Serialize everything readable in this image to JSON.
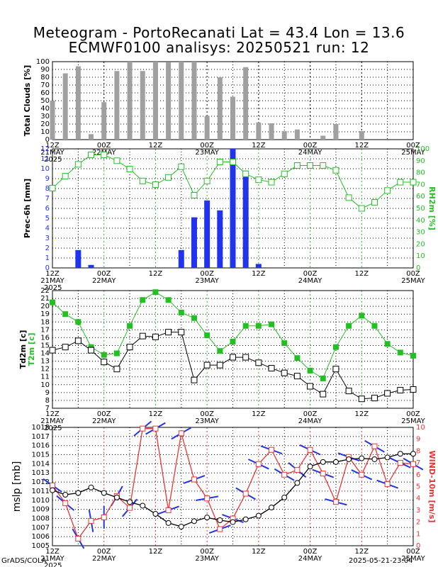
{
  "header": {
    "title_line1": "Meteogram - PortoRecanati Lat = 43.4 Lon = 13.6",
    "title_line2": "ECMWF0100 analisys: 20250521 run: 12"
  },
  "footer": {
    "left": "GrADS/COLA",
    "right": "2025-05-21-23:04"
  },
  "time_axis": {
    "ticks": [
      {
        "label": "12Z",
        "sub": "21MAY"
      },
      {
        "label": "00Z",
        "sub": "22MAY"
      },
      {
        "label": "12Z",
        "sub": ""
      },
      {
        "label": "00Z",
        "sub": "23MAY"
      },
      {
        "label": "12Z",
        "sub": ""
      },
      {
        "label": "00Z",
        "sub": "24MAY"
      },
      {
        "label": "12Z",
        "sub": ""
      },
      {
        "label": "00Z",
        "sub": "25MAY"
      }
    ],
    "year_label": "2025"
  },
  "colors": {
    "gray_bar": "#a0a0a0",
    "blue_bar": "#2233ee",
    "green": "#22c022",
    "red": "#ee3333",
    "blue_wind": "#2233ee"
  },
  "chart_data": [
    {
      "type": "bar",
      "ylabel": "Total Clouds [%]",
      "ylim": [
        0,
        100
      ],
      "yticks": [
        0,
        10,
        20,
        30,
        40,
        50,
        60,
        70,
        80,
        90,
        100
      ],
      "x_hours": [
        0,
        3,
        6,
        9,
        12,
        15,
        18,
        21,
        24,
        27,
        30,
        33,
        36,
        39,
        42,
        45,
        48,
        51,
        54,
        57,
        60,
        63,
        66,
        69,
        72,
        75,
        78,
        81,
        84
      ],
      "values": [
        50,
        85,
        94,
        7,
        48,
        88,
        100,
        88,
        100,
        99,
        100,
        100,
        30,
        80,
        55,
        93,
        22,
        21,
        11,
        13,
        0,
        5,
        20,
        0,
        11,
        0,
        0,
        0,
        0
      ]
    },
    {
      "type": "bar+line",
      "ylabel_left": "Prec-6h [mm]",
      "ylabel_right": "RH2m [%]",
      "ylim_left": [
        0,
        12
      ],
      "ylim_right": [
        0,
        100
      ],
      "yticks_left": [
        0,
        1,
        2,
        3,
        4,
        5,
        6,
        7,
        8,
        9,
        10,
        11,
        12
      ],
      "yticks_right": [
        0,
        10,
        20,
        30,
        40,
        50,
        60,
        70,
        80,
        90,
        100
      ],
      "precip": {
        "x_hours": [
          3,
          6,
          9,
          12,
          15,
          18,
          21,
          24,
          27,
          30,
          33,
          36,
          39,
          42,
          45,
          48,
          51,
          54,
          57,
          60,
          63,
          66,
          69,
          72,
          75,
          78,
          81,
          84
        ],
        "values": [
          0,
          1.8,
          0.3,
          0,
          0,
          0,
          0,
          0,
          0,
          1.8,
          5.1,
          6.8,
          5.8,
          12,
          9.8,
          0.4,
          0,
          0,
          0,
          0,
          0,
          0,
          0,
          0,
          0,
          0,
          0,
          0
        ]
      },
      "rh": {
        "x_hours": [
          0,
          3,
          6,
          9,
          12,
          15,
          18,
          21,
          24,
          27,
          30,
          33,
          36,
          39,
          42,
          45,
          48,
          51,
          54,
          57,
          60,
          63,
          66,
          69,
          72,
          75,
          78,
          81,
          84
        ],
        "values": [
          67,
          77,
          87,
          95,
          95,
          90,
          83,
          73,
          70,
          76,
          85,
          61,
          73,
          89,
          89,
          79,
          74,
          72,
          79,
          86,
          86,
          86,
          82,
          59,
          50,
          55,
          65,
          72,
          72
        ]
      }
    },
    {
      "type": "line",
      "ylabel_left": "Td2m [c]",
      "ylabel_left2": "T2m [c]",
      "ylim": [
        7,
        22
      ],
      "yticks": [
        7,
        8,
        9,
        10,
        11,
        12,
        13,
        14,
        15,
        16,
        17,
        18,
        19,
        20,
        21,
        22
      ],
      "series": [
        {
          "name": "T2m",
          "x_hours": [
            0,
            3,
            6,
            9,
            12,
            15,
            18,
            21,
            24,
            27,
            30,
            33,
            36,
            39,
            42,
            45,
            48,
            51,
            54,
            57,
            60,
            63,
            66,
            69,
            72,
            75,
            78,
            81,
            84
          ],
          "values": [
            20.5,
            19,
            18,
            14.8,
            13.8,
            14,
            17.5,
            20.8,
            21.8,
            20.8,
            19.2,
            18.5,
            16.3,
            14.3,
            15.5,
            17.5,
            17.5,
            17.7,
            15.3,
            13.4,
            11.8,
            10.8,
            14.8,
            17.5,
            18.8,
            17.5,
            15.2,
            14.1,
            13.7
          ]
        },
        {
          "name": "Td2m",
          "x_hours": [
            0,
            3,
            6,
            9,
            12,
            15,
            18,
            21,
            24,
            27,
            30,
            33,
            36,
            39,
            42,
            45,
            48,
            51,
            54,
            57,
            60,
            63,
            66,
            69,
            72,
            75,
            78,
            81,
            84
          ],
          "values": [
            14.4,
            14.8,
            15.6,
            14.4,
            12.9,
            12.0,
            14.8,
            16.2,
            16.1,
            16.7,
            16.7,
            10.6,
            12.5,
            12.5,
            13.5,
            13.5,
            12.8,
            12.1,
            11.5,
            11.1,
            9.8,
            8.8,
            12.0,
            9.2,
            8.2,
            8.3,
            8.9,
            9.3,
            9.4
          ]
        }
      ]
    },
    {
      "type": "line",
      "ylabel_left": "mslp [mb]",
      "ylabel_right": "WIND-10m [m/s]",
      "ylim_left": [
        1005,
        1018
      ],
      "ylim_right": [
        0,
        10
      ],
      "yticks_left": [
        1005,
        1006,
        1007,
        1008,
        1009,
        1010,
        1011,
        1012,
        1013,
        1014,
        1015,
        1016,
        1017,
        1018
      ],
      "yticks_right": [
        0,
        1,
        2,
        3,
        4,
        5,
        6,
        7,
        8,
        9,
        10
      ],
      "mslp": {
        "x_hours": [
          0,
          3,
          6,
          9,
          12,
          15,
          18,
          21,
          24,
          27,
          30,
          33,
          36,
          39,
          42,
          45,
          48,
          51,
          54,
          57,
          60,
          63,
          66,
          69,
          72,
          75,
          78,
          81,
          84
        ],
        "values": [
          1011.1,
          1010.6,
          1010.8,
          1011.4,
          1010.8,
          1010.3,
          1009.8,
          1009.4,
          1008.5,
          1007.5,
          1007.1,
          1007.7,
          1008.1,
          1007.8,
          1007.6,
          1007.9,
          1008.3,
          1009.2,
          1010.3,
          1011.9,
          1013.7,
          1014.2,
          1014.2,
          1014.5,
          1014.6,
          1014.5,
          1014.7,
          1015.1,
          1015.1
        ]
      },
      "wind": {
        "x_hours": [
          0,
          3,
          6,
          9,
          12,
          15,
          18,
          21,
          24,
          27,
          30,
          33,
          36,
          39,
          42,
          45,
          48,
          51,
          54,
          57,
          60,
          63,
          66,
          69,
          72,
          75,
          78,
          81,
          84
        ],
        "values": [
          5.1,
          3.6,
          0.6,
          2.1,
          2.4,
          4.2,
          3.2,
          9.9,
          9.9,
          3.0,
          9.5,
          5.6,
          4.0,
          1.4,
          2.3,
          4.4,
          6.9,
          8.1,
          6.0,
          6.4,
          8.1,
          6.1,
          3.7,
          7.5,
          6.0,
          8.4,
          5.2,
          7.0,
          6.9
        ]
      }
    }
  ]
}
